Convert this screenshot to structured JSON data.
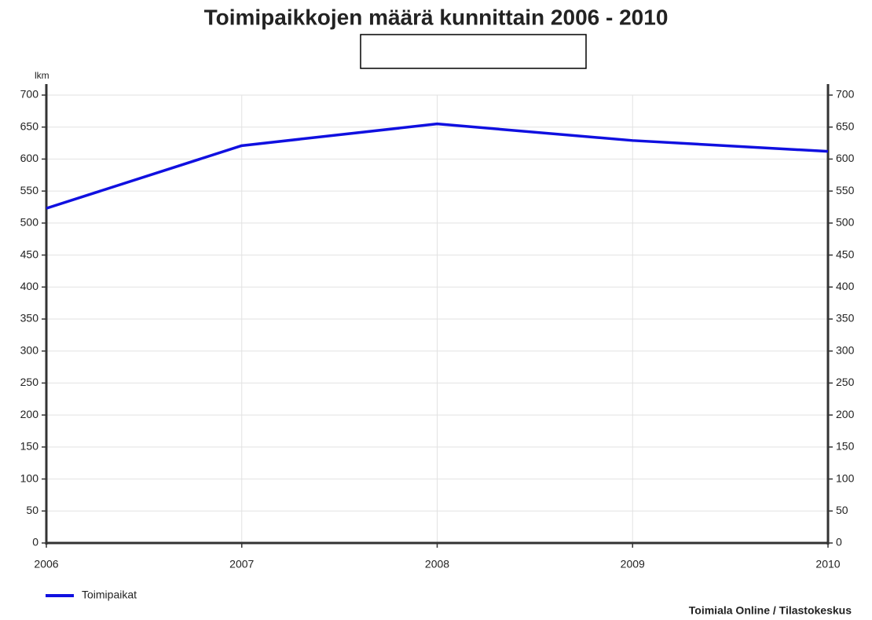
{
  "chart_data": {
    "type": "line",
    "title": "Toimipaikkojen määrä kunnittain 2006 - 2010",
    "y_label": "lkm",
    "x": [
      2006,
      2007,
      2008,
      2009,
      2010
    ],
    "xlim": [
      2006,
      2010
    ],
    "xticks": [
      2006,
      2007,
      2008,
      2009,
      2010
    ],
    "series": [
      {
        "name": "Toimipaikat",
        "color": "#1010e0",
        "values": [
          523,
          621,
          655,
          629,
          612
        ]
      }
    ],
    "ylim": [
      0,
      700
    ],
    "yticks": [
      0,
      50,
      100,
      150,
      200,
      250,
      300,
      350,
      400,
      450,
      500,
      550,
      600,
      650,
      700
    ],
    "grid": true,
    "legend": "bottom-left",
    "source": "Toimiala Online / Tilastokeskus"
  }
}
